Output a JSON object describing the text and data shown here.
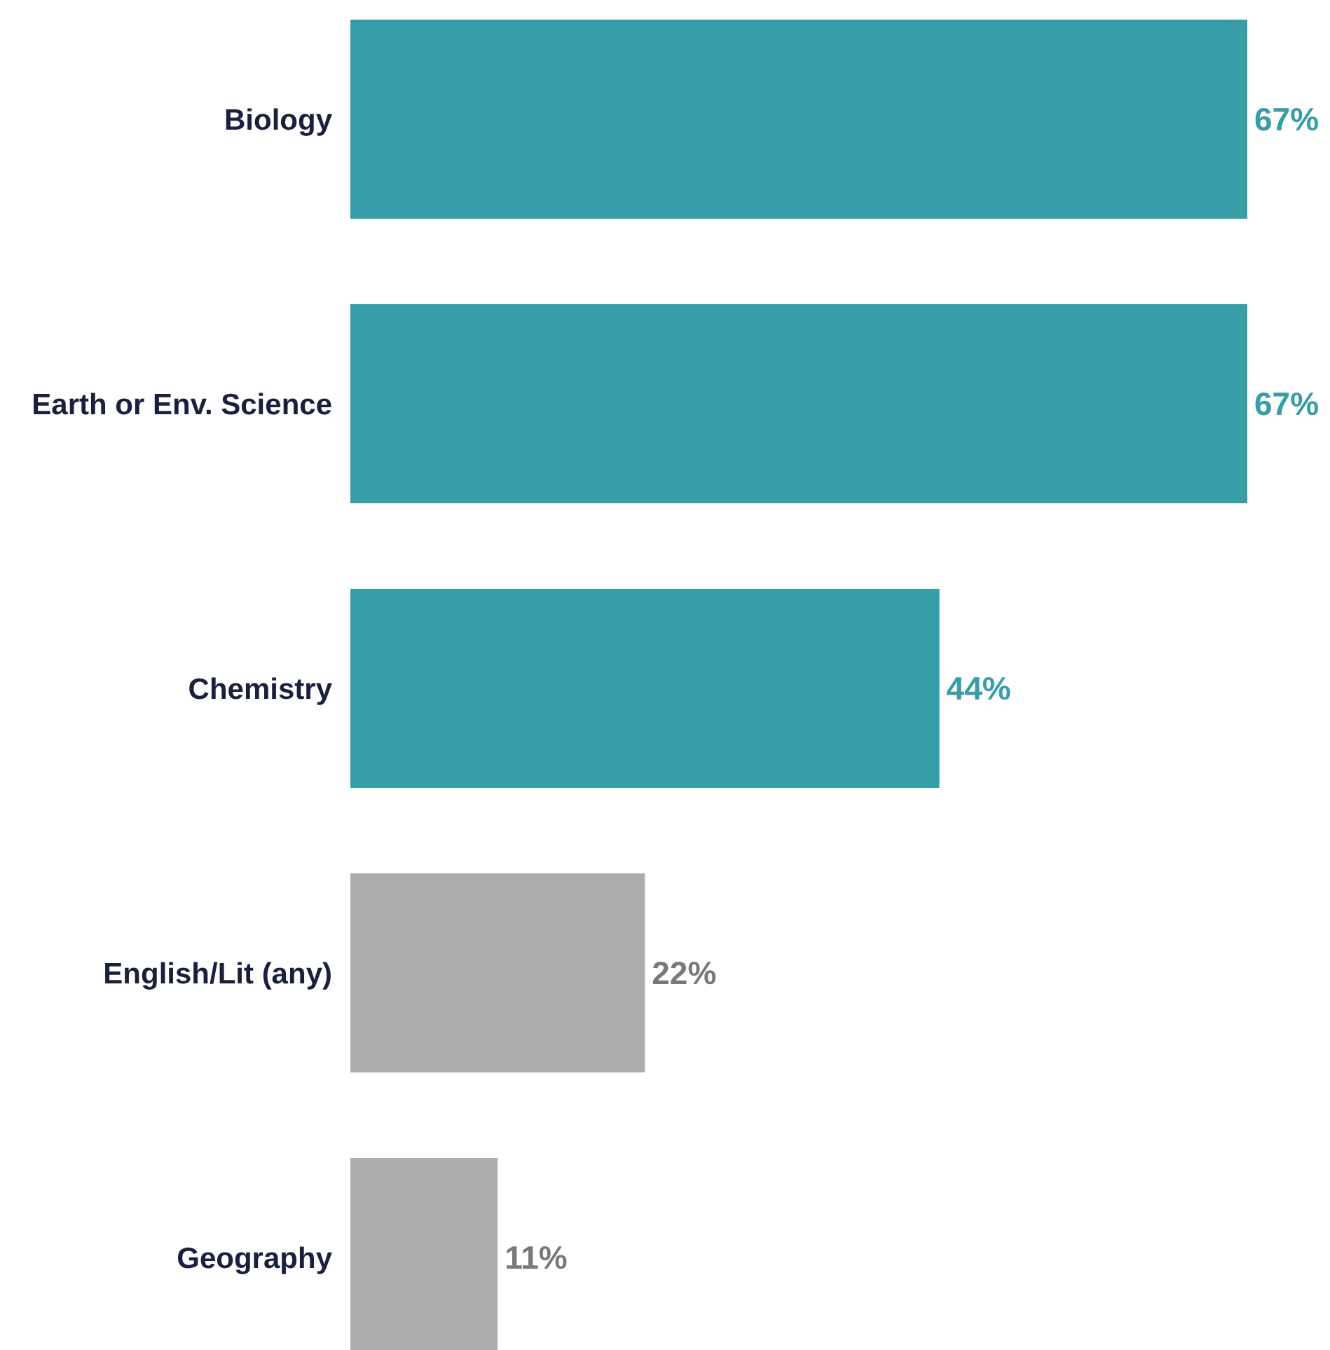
{
  "chart_data": {
    "type": "bar",
    "orientation": "horizontal",
    "categories": [
      "Biology",
      "Earth or Env. Science",
      "Chemistry",
      "English/Lit (any)",
      "Geography"
    ],
    "values": [
      67,
      67,
      44,
      22,
      11
    ],
    "colors": [
      "#379da6",
      "#379da6",
      "#379da6",
      "#adadad",
      "#adadad"
    ],
    "value_labels": [
      "67%",
      "67%",
      "44%",
      "22%",
      "11%"
    ],
    "xlim": [
      0,
      67
    ],
    "tick_labels": "y"
  }
}
